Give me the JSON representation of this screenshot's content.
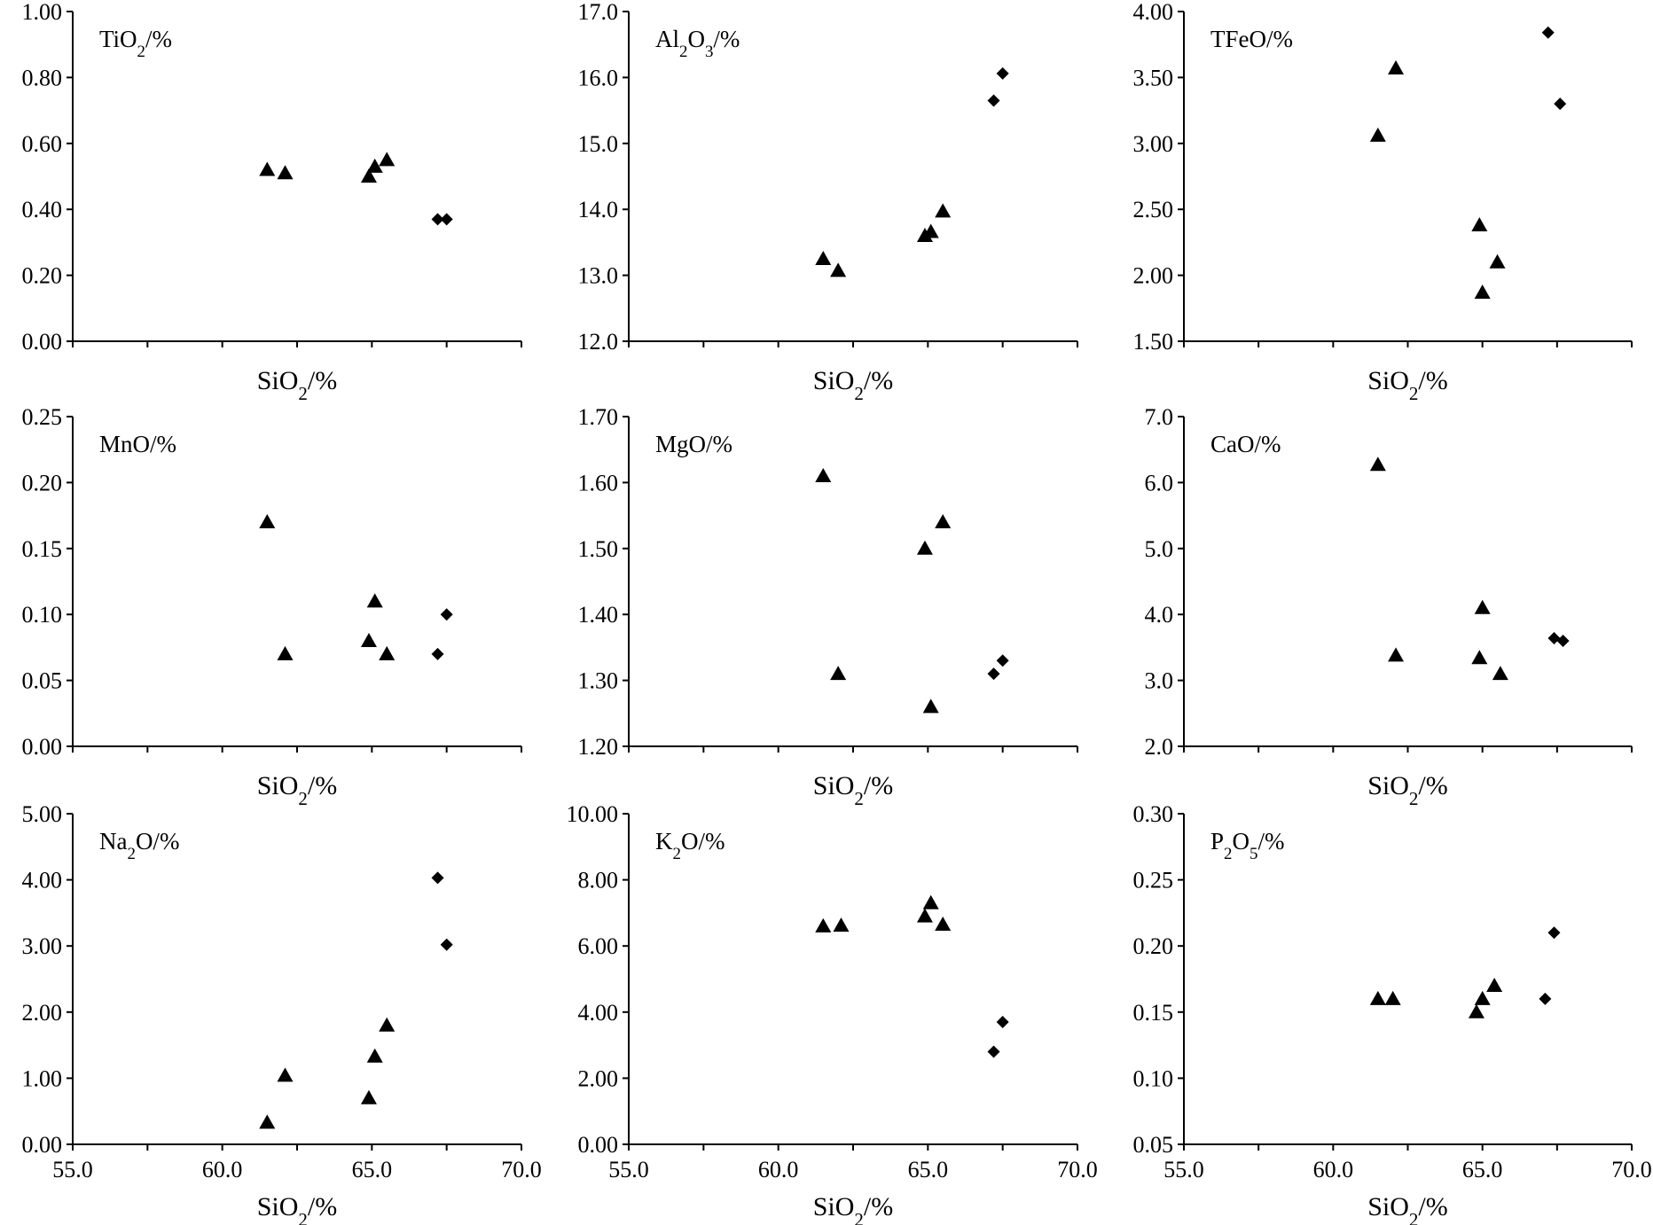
{
  "chart_data": [
    {
      "type": "scatter",
      "title": "",
      "panel_label": {
        "main": "TiO",
        "sub": "2",
        "rest": "/%"
      },
      "xlabel": {
        "main": "SiO",
        "sub": "2",
        "rest": "/%"
      },
      "xlim": [
        55.0,
        70.0
      ],
      "ylim": [
        0.0,
        1.0
      ],
      "xticks": [
        "55.0",
        "60.0",
        "65.0",
        "70.0"
      ],
      "show_xtick_labels": false,
      "yticks": [
        "0.00",
        "0.20",
        "0.40",
        "0.60",
        "0.80",
        "1.00"
      ],
      "series": [
        {
          "name": "triangle",
          "marker": "triangle",
          "x": [
            61.5,
            62.1,
            64.9,
            65.1,
            65.5
          ],
          "y": [
            0.52,
            0.51,
            0.5,
            0.53,
            0.55
          ]
        },
        {
          "name": "diamond",
          "marker": "diamond",
          "x": [
            67.2,
            67.5
          ],
          "y": [
            0.37,
            0.37
          ]
        }
      ]
    },
    {
      "type": "scatter",
      "title": "",
      "panel_label": {
        "main": "Al",
        "sub": "2",
        "rest": "O",
        "sub2": "3",
        "rest2": "/%"
      },
      "xlabel": {
        "main": "SiO",
        "sub": "2",
        "rest": "/%"
      },
      "xlim": [
        55.0,
        70.0
      ],
      "ylim": [
        12.0,
        17.0
      ],
      "xticks": [
        "55.0",
        "60.0",
        "65.0",
        "70.0"
      ],
      "show_xtick_labels": false,
      "yticks": [
        "12.0",
        "13.0",
        "14.0",
        "15.0",
        "16.0",
        "17.0"
      ],
      "series": [
        {
          "name": "triangle",
          "marker": "triangle",
          "x": [
            61.5,
            62.0,
            64.9,
            65.1,
            65.5
          ],
          "y": [
            13.25,
            13.07,
            13.6,
            13.66,
            13.97
          ]
        },
        {
          "name": "diamond",
          "marker": "diamond",
          "x": [
            67.2,
            67.5
          ],
          "y": [
            15.65,
            16.06
          ]
        }
      ]
    },
    {
      "type": "scatter",
      "title": "",
      "panel_label": {
        "main": "TFeO/%"
      },
      "xlabel": {
        "main": "SiO",
        "sub": "2",
        "rest": "/%"
      },
      "xlim": [
        55.0,
        70.0
      ],
      "ylim": [
        1.5,
        4.0
      ],
      "xticks": [
        "55.0",
        "60.0",
        "65.0",
        "70.0"
      ],
      "show_xtick_labels": false,
      "yticks": [
        "1.50",
        "2.00",
        "2.50",
        "3.00",
        "3.50",
        "4.00"
      ],
      "series": [
        {
          "name": "triangle",
          "marker": "triangle",
          "x": [
            61.5,
            62.1,
            64.9,
            65.0,
            65.5
          ],
          "y": [
            3.06,
            3.57,
            2.38,
            1.87,
            2.1
          ]
        },
        {
          "name": "diamond",
          "marker": "diamond",
          "x": [
            67.2,
            67.6
          ],
          "y": [
            3.84,
            3.3
          ]
        }
      ]
    },
    {
      "type": "scatter",
      "title": "",
      "panel_label": {
        "main": "MnO/%"
      },
      "xlabel": {
        "main": "SiO",
        "sub": "2",
        "rest": "/%"
      },
      "xlim": [
        55.0,
        70.0
      ],
      "ylim": [
        0.0,
        0.25
      ],
      "xticks": [
        "55.0",
        "60.0",
        "65.0",
        "70.0"
      ],
      "show_xtick_labels": false,
      "yticks": [
        "0.00",
        "0.05",
        "0.10",
        "0.15",
        "0.20",
        "0.25"
      ],
      "series": [
        {
          "name": "triangle",
          "marker": "triangle",
          "x": [
            61.5,
            62.1,
            64.9,
            65.1,
            65.5
          ],
          "y": [
            0.17,
            0.07,
            0.08,
            0.11,
            0.07
          ]
        },
        {
          "name": "diamond",
          "marker": "diamond",
          "x": [
            67.2,
            67.5
          ],
          "y": [
            0.07,
            0.1
          ]
        }
      ]
    },
    {
      "type": "scatter",
      "title": "",
      "panel_label": {
        "main": "MgO/%"
      },
      "xlabel": {
        "main": "SiO",
        "sub": "2",
        "rest": "/%"
      },
      "xlim": [
        55.0,
        70.0
      ],
      "ylim": [
        1.2,
        1.7
      ],
      "xticks": [
        "55.0",
        "60.0",
        "65.0",
        "70.0"
      ],
      "show_xtick_labels": false,
      "yticks": [
        "1.20",
        "1.30",
        "1.40",
        "1.50",
        "1.60",
        "1.70"
      ],
      "series": [
        {
          "name": "triangle",
          "marker": "triangle",
          "x": [
            61.5,
            62.0,
            64.9,
            65.1,
            65.5
          ],
          "y": [
            1.61,
            1.31,
            1.5,
            1.26,
            1.54
          ]
        },
        {
          "name": "diamond",
          "marker": "diamond",
          "x": [
            67.2,
            67.5
          ],
          "y": [
            1.31,
            1.33
          ]
        }
      ]
    },
    {
      "type": "scatter",
      "title": "",
      "panel_label": {
        "main": "CaO/%"
      },
      "xlabel": {
        "main": "SiO",
        "sub": "2",
        "rest": "/%"
      },
      "xlim": [
        55.0,
        70.0
      ],
      "ylim": [
        2.0,
        7.0
      ],
      "xticks": [
        "55.0",
        "60.0",
        "65.0",
        "70.0"
      ],
      "show_xtick_labels": false,
      "yticks": [
        "2.0",
        "3.0",
        "4.0",
        "5.0",
        "6.0",
        "7.0"
      ],
      "series": [
        {
          "name": "triangle",
          "marker": "triangle",
          "x": [
            61.5,
            62.1,
            64.9,
            65.0,
            65.6
          ],
          "y": [
            6.27,
            3.38,
            3.34,
            4.1,
            3.1
          ]
        },
        {
          "name": "diamond",
          "marker": "diamond",
          "x": [
            67.4,
            67.7
          ],
          "y": [
            3.64,
            3.6
          ]
        }
      ]
    },
    {
      "type": "scatter",
      "title": "",
      "panel_label": {
        "main": "Na",
        "sub": "2",
        "rest": "O/%"
      },
      "xlabel": {
        "main": "SiO",
        "sub": "2",
        "rest": "/%"
      },
      "xlim": [
        55.0,
        70.0
      ],
      "ylim": [
        0.0,
        5.0
      ],
      "xticks": [
        "55.0",
        "60.0",
        "65.0",
        "70.0"
      ],
      "show_xtick_labels": true,
      "yticks": [
        "0.00",
        "1.00",
        "2.00",
        "3.00",
        "4.00",
        "5.00"
      ],
      "series": [
        {
          "name": "triangle",
          "marker": "triangle",
          "x": [
            61.5,
            62.1,
            64.9,
            65.1,
            65.5
          ],
          "y": [
            0.33,
            1.04,
            0.7,
            1.33,
            1.8
          ]
        },
        {
          "name": "diamond",
          "marker": "diamond",
          "x": [
            67.2,
            67.5
          ],
          "y": [
            4.03,
            3.02
          ]
        }
      ]
    },
    {
      "type": "scatter",
      "title": "",
      "panel_label": {
        "main": "K",
        "sub": "2",
        "rest": "O/%"
      },
      "xlabel": {
        "main": "SiO",
        "sub": "2",
        "rest": "/%"
      },
      "xlim": [
        55.0,
        70.0
      ],
      "ylim": [
        0.0,
        10.0
      ],
      "xticks": [
        "55.0",
        "60.0",
        "65.0",
        "70.0"
      ],
      "show_xtick_labels": true,
      "yticks": [
        "0.00",
        "2.00",
        "4.00",
        "6.00",
        "8.00",
        "10.00"
      ],
      "series": [
        {
          "name": "triangle",
          "marker": "triangle",
          "x": [
            61.5,
            62.1,
            64.9,
            65.1,
            65.5
          ],
          "y": [
            6.6,
            6.62,
            6.9,
            7.3,
            6.65
          ]
        },
        {
          "name": "diamond",
          "marker": "diamond",
          "x": [
            67.2,
            67.5
          ],
          "y": [
            2.8,
            3.7
          ]
        }
      ]
    },
    {
      "type": "scatter",
      "title": "",
      "panel_label": {
        "main": "P",
        "sub": "2",
        "rest": "O",
        "sub2": "5",
        "rest2": "/%"
      },
      "xlabel": {
        "main": "SiO",
        "sub": "2",
        "rest": "/%"
      },
      "xlim": [
        55.0,
        70.0
      ],
      "ylim": [
        0.05,
        0.3
      ],
      "xticks": [
        "55.0",
        "60.0",
        "65.0",
        "70.0"
      ],
      "show_xtick_labels": true,
      "yticks": [
        "0.05",
        "0.10",
        "0.15",
        "0.20",
        "0.25",
        "0.30"
      ],
      "series": [
        {
          "name": "triangle",
          "marker": "triangle",
          "x": [
            61.5,
            62.0,
            64.8,
            65.0,
            65.4
          ],
          "y": [
            0.16,
            0.16,
            0.15,
            0.16,
            0.17
          ]
        },
        {
          "name": "diamond",
          "marker": "diamond",
          "x": [
            67.1,
            67.4
          ],
          "y": [
            0.16,
            0.21
          ]
        }
      ]
    }
  ]
}
